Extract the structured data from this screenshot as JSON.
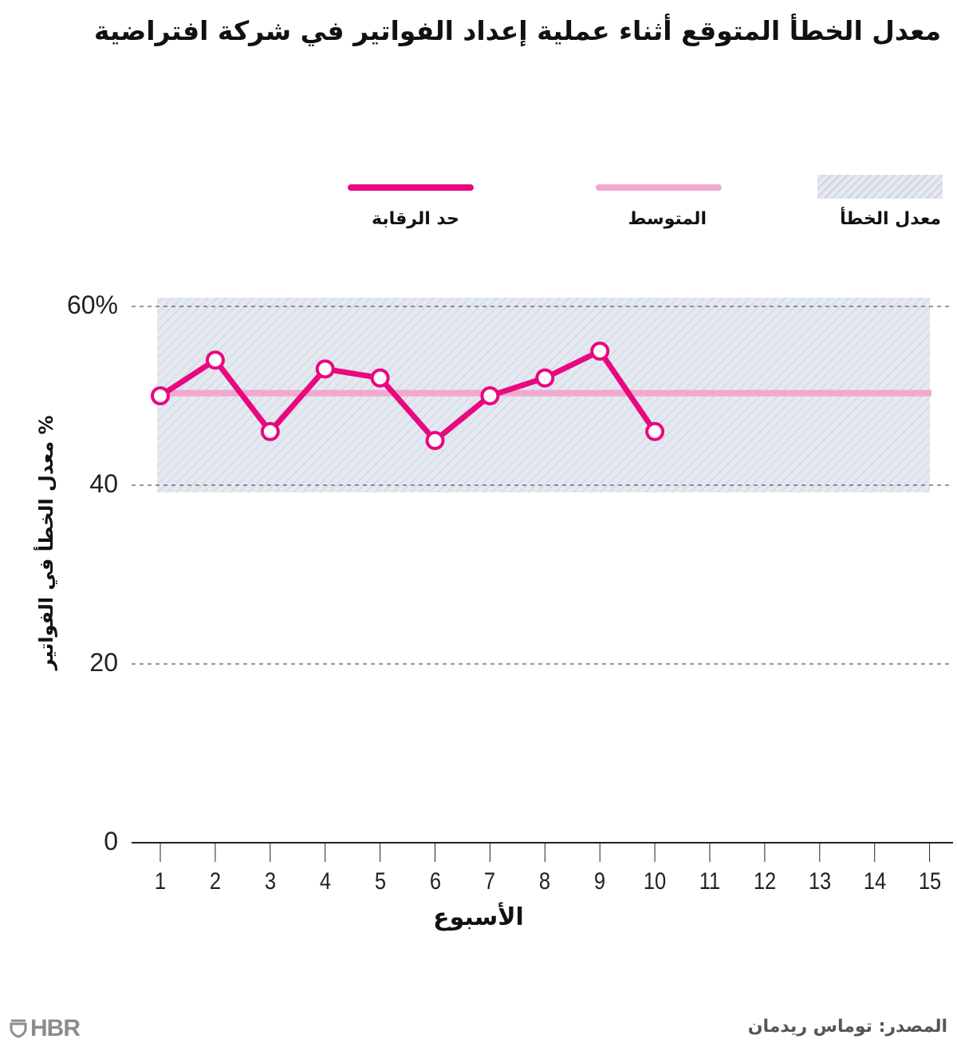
{
  "title": "معدل الخطأ المتوقع أثناء عملية إعداد الفواتير في شركة افتراضية",
  "legend": [
    {
      "label": "معدل الخطأ",
      "type": "band",
      "color": "#e3e8f0"
    },
    {
      "label": "المتوسط",
      "type": "line",
      "color": "#f2a9cd"
    },
    {
      "label": "حد الرقابة",
      "type": "line",
      "color": "#e8087f"
    }
  ],
  "source": "المصدر: توماس ريدمان",
  "logo": "HBR",
  "chart_data": {
    "type": "line",
    "title": "معدل الخطأ المتوقع أثناء عملية إعداد الفواتير في شركة افتراضية",
    "xlabel": "الأسبوع",
    "ylabel": "% معدل الخطأ في الفواتير",
    "x": [
      1,
      2,
      3,
      4,
      5,
      6,
      7,
      8,
      9,
      10,
      11,
      12,
      13,
      14,
      15
    ],
    "y_ticks": [
      {
        "value": 0,
        "label": "0"
      },
      {
        "value": 20,
        "label": "20"
      },
      {
        "value": 40,
        "label": "40"
      },
      {
        "value": 60,
        "label": "60%"
      }
    ],
    "ylim": [
      0,
      60
    ],
    "grid": "dashed horizontal at 20, 40, 60",
    "series": [
      {
        "name": "حد الرقابة",
        "color": "#e8087f",
        "x": [
          1,
          2,
          3,
          4,
          5,
          6,
          7,
          8,
          9,
          10
        ],
        "values": [
          50,
          54,
          46,
          53,
          52,
          45,
          50,
          52,
          55,
          46
        ]
      },
      {
        "name": "المتوسط",
        "color": "#f2a9cd",
        "x": [
          1,
          15
        ],
        "values": [
          50.3,
          50.3
        ]
      }
    ],
    "band": {
      "name": "معدل الخطأ",
      "from": 39.2,
      "to": 61,
      "x_from": 1,
      "x_to": 15
    },
    "legend_position": "top"
  }
}
